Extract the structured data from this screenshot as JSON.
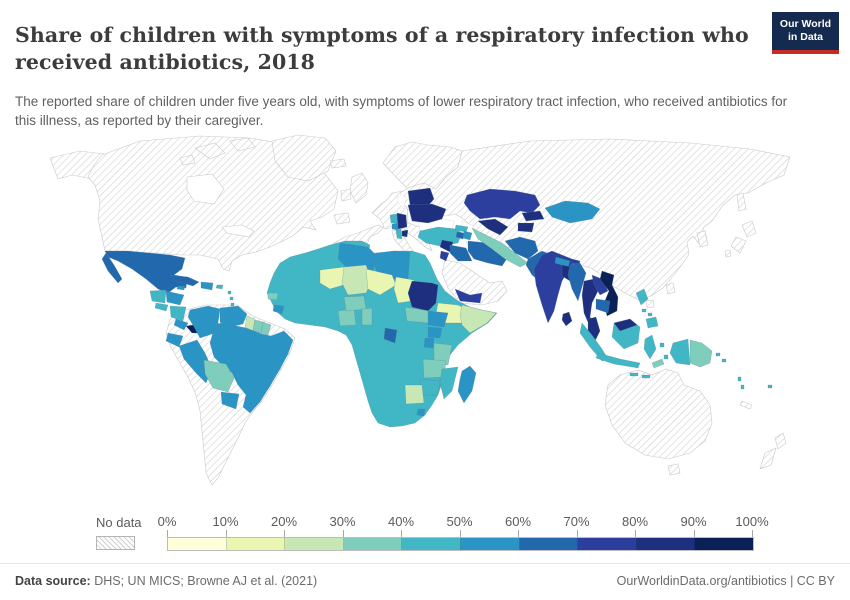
{
  "header": {
    "title": "Share of children with symptoms of a respiratory infection who received antibiotics, 2018",
    "subtitle": "The reported share of children under five years old, with symptoms of lower respiratory tract infection, who received antibiotics for this illness, as reported by their caregiver.",
    "logo": {
      "line1": "Our World",
      "line2": "in Data",
      "bg_color": "#142a4e",
      "accent_color": "#c22d26"
    }
  },
  "legend": {
    "no_data_label": "No data",
    "tick_labels": [
      "0%",
      "10%",
      "20%",
      "30%",
      "40%",
      "50%",
      "60%",
      "70%",
      "80%",
      "90%",
      "100%"
    ],
    "bins": [
      {
        "range": "0-10%",
        "color": "#ffffd9"
      },
      {
        "range": "10-20%",
        "color": "#e9f6b1"
      },
      {
        "range": "20-30%",
        "color": "#c7e8b4"
      },
      {
        "range": "30-40%",
        "color": "#7fcdbb"
      },
      {
        "range": "40-50%",
        "color": "#41b6c4"
      },
      {
        "range": "50-60%",
        "color": "#2a94c5"
      },
      {
        "range": "60-70%",
        "color": "#2268ad"
      },
      {
        "range": "70-80%",
        "color": "#2d3f9e"
      },
      {
        "range": "80-90%",
        "color": "#1d2f7e"
      },
      {
        "range": "90-100%",
        "color": "#0b2057"
      }
    ]
  },
  "footer": {
    "source_label": "Data source:",
    "source_text": " DHS; UN MICS; Browne AJ et al. (2021)",
    "right_text": "OurWorldinData.org/antibiotics | CC BY"
  },
  "chart_data": {
    "type": "choropleth_map",
    "title": "Share of children with symptoms of a respiratory infection who received antibiotics",
    "year": 2018,
    "unit": "%",
    "colormap": "YlGnBu",
    "legend_range": [
      0,
      100
    ],
    "no_data_regions": [
      "United States",
      "Canada",
      "Greenland",
      "Argentina",
      "Chile",
      "Uruguay",
      "Most of Europe",
      "Russia",
      "China",
      "Saudi Arabia",
      "Oman",
      "Australia",
      "New Zealand",
      "Japan",
      "North Korea",
      "South Korea",
      "New Caledonia"
    ],
    "regions": [
      {
        "id": "mexico",
        "name": "Mexico",
        "band": "60-70%",
        "color": "#2268ad"
      },
      {
        "id": "guatemala",
        "name": "Guatemala",
        "band": "40-50%",
        "color": "#41b6c4"
      },
      {
        "id": "honduras",
        "name": "Honduras",
        "band": "50-60%",
        "color": "#2a94c5"
      },
      {
        "id": "el-salvador",
        "name": "El Salvador",
        "band": "40-50%",
        "color": "#41b6c4"
      },
      {
        "id": "nicaragua",
        "name": "Nicaragua",
        "band": "40-50%",
        "color": "#41b6c4"
      },
      {
        "id": "costa-rica",
        "name": "Costa Rica",
        "band": "50-60%",
        "color": "#2a94c5"
      },
      {
        "id": "panama",
        "name": "Panama",
        "band": "90-100%",
        "color": "#0b2057"
      },
      {
        "id": "cuba",
        "name": "Cuba",
        "band": "60-70%",
        "color": "#2268ad"
      },
      {
        "id": "jamaica",
        "name": "Jamaica",
        "band": "50-60%",
        "color": "#2a94c5"
      },
      {
        "id": "hispaniola",
        "name": "Haiti / Dominican Republic",
        "band": "50-60%",
        "color": "#2a94c5"
      },
      {
        "id": "puerto-rico",
        "name": "Puerto Rico",
        "band": "40-50%",
        "color": "#41b6c4"
      },
      {
        "id": "lesser-antilles",
        "name": "Lesser Antilles",
        "band": "40-50%",
        "color": "#41b6c4"
      },
      {
        "id": "colombia",
        "name": "Colombia",
        "band": "50-60%",
        "color": "#2a94c5"
      },
      {
        "id": "venezuela",
        "name": "Venezuela",
        "band": "50-60%",
        "color": "#2a94c5"
      },
      {
        "id": "guyana",
        "name": "Guyana",
        "band": "20-30%",
        "color": "#c7e8b4"
      },
      {
        "id": "suriname",
        "name": "Suriname",
        "band": "30-40%",
        "color": "#7fcdbb"
      },
      {
        "id": "french-guiana",
        "name": "French Guiana",
        "band": "30-40%",
        "color": "#7fcdbb"
      },
      {
        "id": "ecuador",
        "name": "Ecuador",
        "band": "50-60%",
        "color": "#2a94c5"
      },
      {
        "id": "peru",
        "name": "Peru",
        "band": "50-60%",
        "color": "#2a94c5"
      },
      {
        "id": "brazil",
        "name": "Brazil",
        "band": "50-60%",
        "color": "#2a94c5"
      },
      {
        "id": "bolivia",
        "name": "Bolivia",
        "band": "30-40%",
        "color": "#7fcdbb"
      },
      {
        "id": "paraguay",
        "name": "Paraguay",
        "band": "50-60%",
        "color": "#2a94c5"
      },
      {
        "id": "belarus",
        "name": "Belarus",
        "band": "80-90%",
        "color": "#1d2f7e"
      },
      {
        "id": "ukraine",
        "name": "Ukraine",
        "band": "80-90%",
        "color": "#1d2f7e"
      },
      {
        "id": "serbia",
        "name": "Serbia",
        "band": "80-90%",
        "color": "#1d2f7e"
      },
      {
        "id": "bosnia",
        "name": "Bosnia and Herzegovina",
        "band": "40-50%",
        "color": "#41b6c4"
      },
      {
        "id": "montenegro",
        "name": "Montenegro",
        "band": "50-60%",
        "color": "#2a94c5"
      },
      {
        "id": "albania",
        "name": "Albania",
        "band": "40-50%",
        "color": "#41b6c4"
      },
      {
        "id": "north-macedonia",
        "name": "North Macedonia",
        "band": "80-90%",
        "color": "#1d2f7e"
      },
      {
        "id": "turkey",
        "name": "Turkey",
        "band": "40-50%",
        "color": "#41b6c4"
      },
      {
        "id": "georgia",
        "name": "Georgia",
        "band": "40-50%",
        "color": "#41b6c4"
      },
      {
        "id": "armenia",
        "name": "Armenia",
        "band": "60-70%",
        "color": "#2268ad"
      },
      {
        "id": "azerbaijan",
        "name": "Azerbaijan",
        "band": "50-60%",
        "color": "#2a94c5"
      },
      {
        "id": "syria",
        "name": "Syria",
        "band": "80-90%",
        "color": "#1d2f7e"
      },
      {
        "id": "jordan",
        "name": "Jordan",
        "band": "70-80%",
        "color": "#2d3f9e"
      },
      {
        "id": "iraq",
        "name": "Iraq",
        "band": "60-70%",
        "color": "#2268ad"
      },
      {
        "id": "iran",
        "name": "Iran",
        "band": "60-70%",
        "color": "#2268ad"
      },
      {
        "id": "yemen",
        "name": "Yemen",
        "band": "70-80%",
        "color": "#2d3f9e"
      },
      {
        "id": "kazakhstan",
        "name": "Kazakhstan",
        "band": "70-80%",
        "color": "#2d3f9e"
      },
      {
        "id": "uzbekistan",
        "name": "Uzbekistan",
        "band": "80-90%",
        "color": "#1d2f7e"
      },
      {
        "id": "turkmenistan",
        "name": "Turkmenistan",
        "band": "30-40%",
        "color": "#7fcdbb"
      },
      {
        "id": "kyrgyzstan",
        "name": "Kyrgyzstan",
        "band": "80-90%",
        "color": "#1d2f7e"
      },
      {
        "id": "tajikistan",
        "name": "Tajikistan",
        "band": "80-90%",
        "color": "#1d2f7e"
      },
      {
        "id": "afghanistan",
        "name": "Afghanistan",
        "band": "60-70%",
        "color": "#2268ad"
      },
      {
        "id": "pakistan",
        "name": "Pakistan",
        "band": "60-70%",
        "color": "#2268ad"
      },
      {
        "id": "mongolia",
        "name": "Mongolia",
        "band": "50-60%",
        "color": "#2a94c5"
      },
      {
        "id": "india",
        "name": "India",
        "band": "70-80%",
        "color": "#2d3f9e"
      },
      {
        "id": "nepal",
        "name": "Nepal",
        "band": "50-60%",
        "color": "#2a94c5"
      },
      {
        "id": "bhutan",
        "name": "Bhutan",
        "band": "60-70%",
        "color": "#2268ad"
      },
      {
        "id": "bangladesh",
        "name": "Bangladesh",
        "band": "80-90%",
        "color": "#1d2f7e"
      },
      {
        "id": "sri-lanka",
        "name": "Sri Lanka",
        "band": "80-90%",
        "color": "#1d2f7e"
      },
      {
        "id": "myanmar",
        "name": "Myanmar",
        "band": "60-70%",
        "color": "#2268ad"
      },
      {
        "id": "thailand",
        "name": "Thailand",
        "band": "80-90%",
        "color": "#1d2f7e"
      },
      {
        "id": "laos",
        "name": "Laos",
        "band": "70-80%",
        "color": "#2d3f9e"
      },
      {
        "id": "vietnam",
        "name": "Vietnam",
        "band": "90-100%",
        "color": "#0b2057"
      },
      {
        "id": "cambodia",
        "name": "Cambodia",
        "band": "60-70%",
        "color": "#2268ad"
      },
      {
        "id": "malaysia",
        "name": "Malaysia",
        "band": "80-90%",
        "color": "#1d2f7e"
      },
      {
        "id": "malaysia-borneo",
        "name": "Malaysia (Borneo)",
        "band": "80-90%",
        "color": "#1d2f7e"
      },
      {
        "id": "indonesia",
        "name": "Indonesia",
        "band": "40-50%",
        "color": "#41b6c4"
      },
      {
        "id": "philippines",
        "name": "Philippines",
        "band": "40-50%",
        "color": "#41b6c4"
      },
      {
        "id": "timor-leste",
        "name": "Timor-Leste",
        "band": "30-40%",
        "color": "#7fcdbb"
      },
      {
        "id": "papua-new-guinea",
        "name": "Papua New Guinea",
        "band": "30-40%",
        "color": "#7fcdbb"
      },
      {
        "id": "solomon-islands",
        "name": "Solomon Islands",
        "band": "40-50%",
        "color": "#41b6c4"
      },
      {
        "id": "vanuatu",
        "name": "Vanuatu",
        "band": "40-50%",
        "color": "#41b6c4"
      },
      {
        "id": "fiji",
        "name": "Fiji",
        "band": "40-50%",
        "color": "#41b6c4"
      },
      {
        "id": "africa-assorted",
        "name": "Africa (assorted 40-50% countries: Morocco, Egypt, Senegal, Guinea, Liberia, Ghana, Nigeria, Cameroon, Congo, DR Congo, Kenya, Eritrea, Angola, Malawi, Namibia, South Africa)",
        "band": "40-50%",
        "color": "#41b6c4"
      },
      {
        "id": "algeria",
        "name": "Algeria",
        "band": "50-60%",
        "color": "#2a94c5"
      },
      {
        "id": "libya",
        "name": "Libya",
        "band": "50-60%",
        "color": "#2a94c5"
      },
      {
        "id": "mauritania",
        "name": "Mauritania",
        "band": "10-20%",
        "color": "#e9f6b1"
      },
      {
        "id": "mali",
        "name": "Mali",
        "band": "20-30%",
        "color": "#c7e8b4"
      },
      {
        "id": "niger",
        "name": "Niger",
        "band": "10-20%",
        "color": "#e9f6b1"
      },
      {
        "id": "chad",
        "name": "Chad",
        "band": "10-20%",
        "color": "#e9f6b1"
      },
      {
        "id": "sudan",
        "name": "Sudan",
        "band": "80-90%",
        "color": "#1d2f7e"
      },
      {
        "id": "ethiopia",
        "name": "Ethiopia",
        "band": "10-20%",
        "color": "#e9f6b1"
      },
      {
        "id": "somalia",
        "name": "Somalia",
        "band": "20-30%",
        "color": "#c7e8b4"
      },
      {
        "id": "guinea-bissau",
        "name": "Guinea-Bissau",
        "band": "30-40%",
        "color": "#7fcdbb"
      },
      {
        "id": "sierra-leone",
        "name": "Sierra Leone",
        "band": "50-60%",
        "color": "#2a94c5"
      },
      {
        "id": "cote-divoire",
        "name": "Cote d'Ivoire",
        "band": "30-40%",
        "color": "#7fcdbb"
      },
      {
        "id": "burkina-faso",
        "name": "Burkina Faso",
        "band": "30-40%",
        "color": "#7fcdbb"
      },
      {
        "id": "togo-benin",
        "name": "Togo / Benin",
        "band": "30-40%",
        "color": "#7fcdbb"
      },
      {
        "id": "central-african-republic",
        "name": "Central African Republic",
        "band": "30-40%",
        "color": "#7fcdbb"
      },
      {
        "id": "south-sudan",
        "name": "South Sudan",
        "band": "50-60%",
        "color": "#2a94c5"
      },
      {
        "id": "uganda",
        "name": "Uganda",
        "band": "50-60%",
        "color": "#2a94c5"
      },
      {
        "id": "rwanda-burundi",
        "name": "Rwanda / Burundi",
        "band": "50-60%",
        "color": "#2a94c5"
      },
      {
        "id": "gabon",
        "name": "Gabon / Equatorial Guinea",
        "band": "60-70%",
        "color": "#2268ad"
      },
      {
        "id": "tanzania",
        "name": "Tanzania",
        "band": "30-40%",
        "color": "#7fcdbb"
      },
      {
        "id": "zambia",
        "name": "Zambia",
        "band": "30-40%",
        "color": "#7fcdbb"
      },
      {
        "id": "mozambique",
        "name": "Mozambique",
        "band": "40-50%",
        "color": "#41b6c4"
      },
      {
        "id": "zimbabwe",
        "name": "Zimbabwe",
        "band": "40-50%",
        "color": "#41b6c4"
      },
      {
        "id": "botswana",
        "name": "Botswana",
        "band": "20-30%",
        "color": "#c7e8b4"
      },
      {
        "id": "lesotho",
        "name": "Lesotho",
        "band": "50-60%",
        "color": "#2a94c5"
      },
      {
        "id": "madagascar",
        "name": "Madagascar",
        "band": "50-60%",
        "color": "#2a94c5"
      }
    ]
  }
}
